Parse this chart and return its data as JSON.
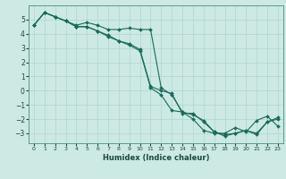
{
  "title": "",
  "xlabel": "Humidex (Indice chaleur)",
  "ylabel": "",
  "bg_color": "#cce9e4",
  "grid_color": "#aed6cf",
  "line_color": "#1a6b5a",
  "xlim": [
    -0.5,
    23.5
  ],
  "ylim": [
    -3.7,
    6.0
  ],
  "yticks": [
    -3,
    -2,
    -1,
    0,
    1,
    2,
    3,
    4,
    5
  ],
  "xticks": [
    0,
    1,
    2,
    3,
    4,
    5,
    6,
    7,
    8,
    9,
    10,
    11,
    12,
    13,
    14,
    15,
    16,
    17,
    18,
    19,
    20,
    21,
    22,
    23
  ],
  "series1_x": [
    0,
    1,
    2,
    3,
    4,
    5,
    6,
    7,
    8,
    9,
    10,
    11,
    12,
    13,
    14,
    15,
    16,
    17,
    18,
    19,
    20,
    21,
    22,
    23
  ],
  "series1_y": [
    4.6,
    5.5,
    5.2,
    4.9,
    4.5,
    4.5,
    4.2,
    3.8,
    3.5,
    3.2,
    2.8,
    0.2,
    -0.3,
    -1.4,
    -1.5,
    -2.0,
    -2.8,
    -3.0,
    -3.0,
    -2.6,
    -2.9,
    -2.1,
    -1.8,
    -2.5
  ],
  "series2_x": [
    0,
    1,
    2,
    3,
    4,
    5,
    6,
    7,
    8,
    9,
    10,
    11,
    12,
    13,
    14,
    15,
    16,
    17,
    18,
    19,
    20,
    21,
    22,
    23
  ],
  "series2_y": [
    4.6,
    5.5,
    5.2,
    4.9,
    4.6,
    4.8,
    4.6,
    4.3,
    4.3,
    4.4,
    4.3,
    4.3,
    0.2,
    -0.3,
    -1.5,
    -1.7,
    -2.1,
    -2.9,
    -3.2,
    -3.0,
    -2.8,
    -3.0,
    -2.2,
    -1.9
  ],
  "series3_x": [
    0,
    1,
    2,
    3,
    4,
    5,
    6,
    7,
    8,
    9,
    10,
    11,
    12,
    13,
    14,
    15,
    16,
    17,
    18,
    19,
    20,
    21,
    22,
    23
  ],
  "series3_y": [
    4.6,
    5.5,
    5.2,
    4.9,
    4.5,
    4.5,
    4.2,
    3.9,
    3.5,
    3.3,
    2.9,
    0.3,
    0.0,
    -0.2,
    -1.6,
    -1.6,
    -2.2,
    -2.9,
    -3.1,
    -3.0,
    -2.8,
    -3.1,
    -2.2,
    -2.0
  ]
}
